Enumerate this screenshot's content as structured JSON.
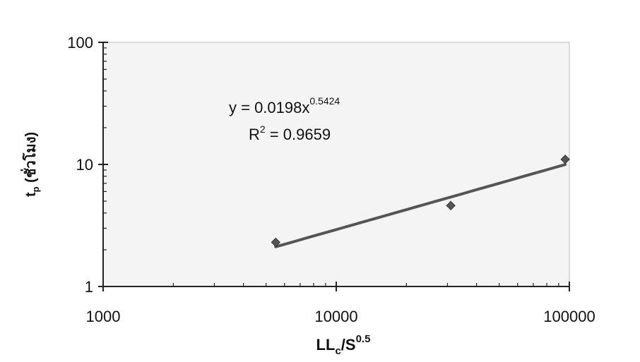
{
  "chart_data": {
    "type": "scatter",
    "x_scale": "log",
    "y_scale": "log",
    "xlim": [
      1000,
      100000
    ],
    "ylim": [
      1,
      100
    ],
    "x_ticks": [
      "1000",
      "10000",
      "100000"
    ],
    "y_ticks": [
      "1",
      "10",
      "100"
    ],
    "xlabel": {
      "main": "LL",
      "sub": "c",
      "mid": "/S",
      "sup": "0.5"
    },
    "ylabel": {
      "main": "t",
      "sub": "p",
      "rest": " (ชั่วโมง)"
    },
    "points": [
      {
        "x": 5500,
        "y": 2.3
      },
      {
        "x": 31000,
        "y": 4.6
      },
      {
        "x": 96000,
        "y": 11.0
      }
    ],
    "trendline": {
      "a": 0.0198,
      "b": 0.5424,
      "x_start": 5500,
      "x_end": 96000,
      "equation_prefix": "y = 0.0198x",
      "equation_exponent": "0.5424",
      "r2_prefix": "R",
      "r2_exponent": "2",
      "r2_suffix": " = 0.9659"
    },
    "grid": false,
    "legend": "none",
    "colors": {
      "marker": "#555555",
      "trendline": "#555555",
      "plot_background": "#f4f4f4",
      "axis": "#222222"
    }
  }
}
